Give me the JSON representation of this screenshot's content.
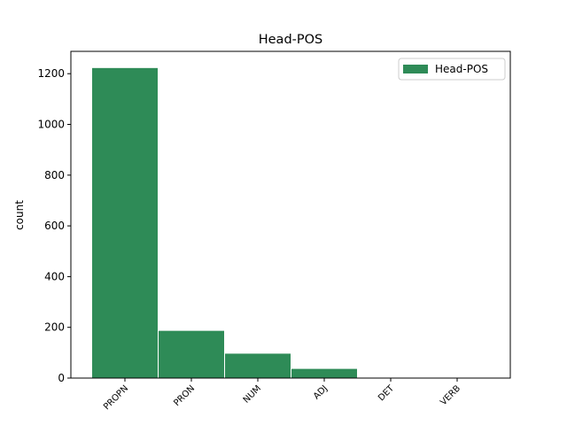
{
  "chart_data": {
    "type": "bar",
    "title": "Head-POS",
    "y_label": "count",
    "categories": [
      "PROPN",
      "PRON",
      "NUM",
      "ADJ",
      "DET",
      "VERB"
    ],
    "series": [
      {
        "name": "Head-POS",
        "color": "#2e8b57",
        "values": [
          1224,
          188,
          98,
          38,
          2,
          1
        ]
      }
    ],
    "ylim": [
      0,
      1288
    ],
    "yticks": [
      0,
      200,
      400,
      600,
      800,
      1000,
      1200
    ],
    "legend": "upper right"
  }
}
